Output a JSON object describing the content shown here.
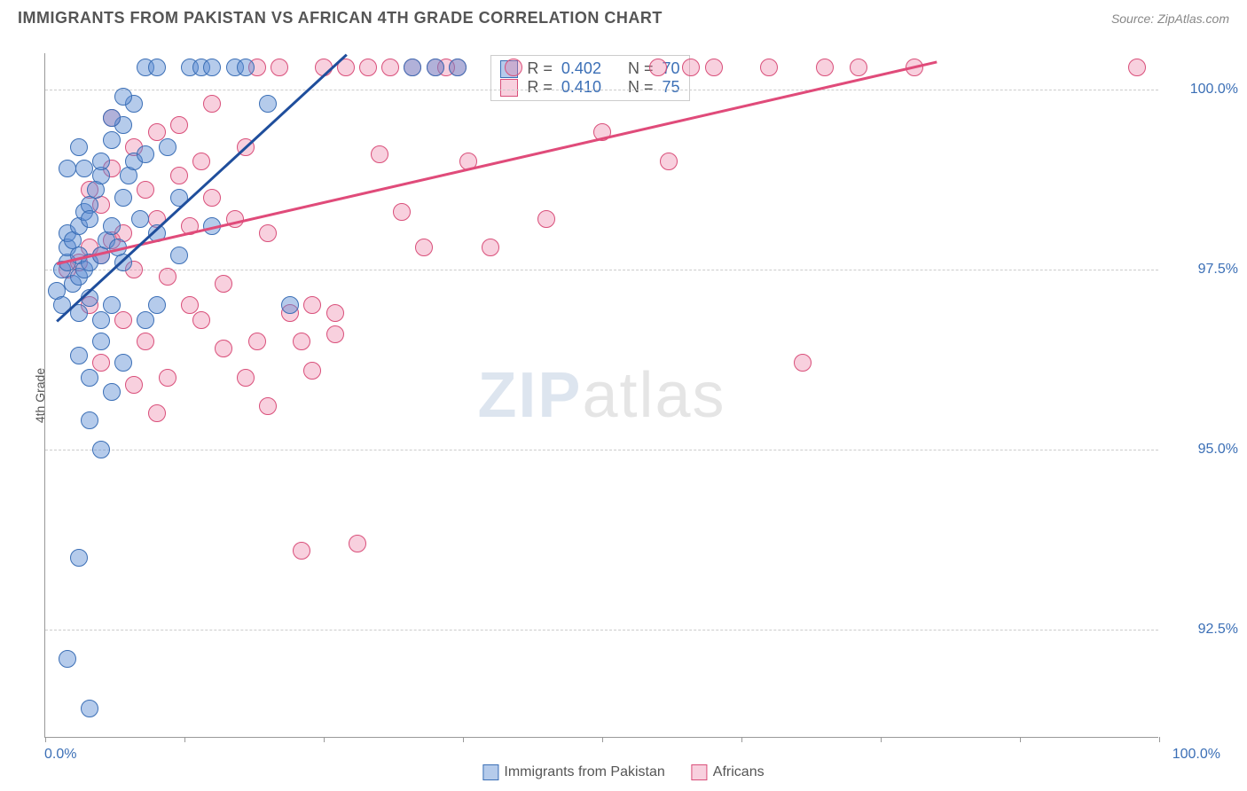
{
  "header": {
    "title": "IMMIGRANTS FROM PAKISTAN VS AFRICAN 4TH GRADE CORRELATION CHART",
    "source": "Source: ZipAtlas.com"
  },
  "axes": {
    "y_label": "4th Grade",
    "x_min": 0,
    "x_max": 100,
    "y_min": 91,
    "y_max": 100.5,
    "y_ticks": [
      92.5,
      95.0,
      97.5,
      100.0
    ],
    "y_tick_labels": [
      "92.5%",
      "95.0%",
      "97.5%",
      "100.0%"
    ],
    "x_ticks": [
      0,
      12.5,
      25,
      37.5,
      50,
      62.5,
      75,
      87.5,
      100
    ],
    "x_left_label": "0.0%",
    "x_right_label": "100.0%"
  },
  "colors": {
    "blue_fill": "rgba(90,140,210,0.45)",
    "blue_stroke": "#3b6fb6",
    "pink_fill": "rgba(235,120,160,0.35)",
    "pink_stroke": "#d94f7a",
    "grid": "#cccccc",
    "axis": "#999999",
    "text_blue": "#3b6fb6",
    "text_gray": "#555555",
    "line_blue": "#1f4e9c",
    "line_pink": "#e04b7a"
  },
  "marker_radius": 10,
  "legend_bottom": {
    "items": [
      {
        "label": "Immigrants from Pakistan",
        "swatch_fill": "rgba(90,140,210,0.45)",
        "swatch_stroke": "#3b6fb6"
      },
      {
        "label": "Africans",
        "swatch_fill": "rgba(235,120,160,0.35)",
        "swatch_stroke": "#d94f7a"
      }
    ]
  },
  "stats": {
    "rows": [
      {
        "swatch_fill": "rgba(90,140,210,0.45)",
        "swatch_stroke": "#3b6fb6",
        "r": "0.402",
        "n": "70"
      },
      {
        "swatch_fill": "rgba(235,120,160,0.35)",
        "swatch_stroke": "#d94f7a",
        "r": "0.410",
        "n": "75"
      }
    ]
  },
  "watermark": {
    "zip": "ZIP",
    "atlas": "atlas"
  },
  "trend_lines": {
    "blue": {
      "x1": 1,
      "y1": 96.8,
      "x2": 27,
      "y2": 100.5,
      "color": "#1f4e9c",
      "width": 2.5
    },
    "pink": {
      "x1": 1,
      "y1": 97.6,
      "x2": 80,
      "y2": 100.4,
      "color": "#e04b7a",
      "width": 2.5
    }
  },
  "series": {
    "pakistan": {
      "fill": "rgba(90,140,210,0.45)",
      "stroke": "#3b6fb6",
      "points": [
        [
          1,
          97.2
        ],
        [
          1.5,
          97.5
        ],
        [
          2,
          97.6
        ],
        [
          2,
          97.8
        ],
        [
          2,
          98.0
        ],
        [
          2.5,
          97.3
        ],
        [
          2.5,
          97.9
        ],
        [
          3,
          97.4
        ],
        [
          3,
          97.7
        ],
        [
          3,
          98.1
        ],
        [
          3.5,
          97.5
        ],
        [
          3.5,
          98.3
        ],
        [
          4,
          97.6
        ],
        [
          4,
          98.4
        ],
        [
          4,
          97.1
        ],
        [
          4.5,
          98.6
        ],
        [
          5,
          97.7
        ],
        [
          5,
          98.8
        ],
        [
          5,
          99.0
        ],
        [
          5.5,
          97.9
        ],
        [
          6,
          98.1
        ],
        [
          6,
          99.3
        ],
        [
          6.5,
          97.8
        ],
        [
          7,
          98.5
        ],
        [
          7,
          99.5
        ],
        [
          7,
          97.6
        ],
        [
          7.5,
          98.8
        ],
        [
          8,
          99.0
        ],
        [
          8,
          99.8
        ],
        [
          8.5,
          98.2
        ],
        [
          9,
          100.3
        ],
        [
          9,
          99.1
        ],
        [
          10,
          100.3
        ],
        [
          10,
          98.0
        ],
        [
          11,
          99.2
        ],
        [
          12,
          98.5
        ],
        [
          12,
          97.7
        ],
        [
          13,
          100.3
        ],
        [
          14,
          100.3
        ],
        [
          15,
          100.3
        ],
        [
          15,
          98.1
        ],
        [
          17,
          100.3
        ],
        [
          18,
          100.3
        ],
        [
          20,
          99.8
        ],
        [
          22,
          97.0
        ],
        [
          3,
          96.3
        ],
        [
          4,
          96.0
        ],
        [
          5,
          96.5
        ],
        [
          6,
          95.8
        ],
        [
          7,
          96.2
        ],
        [
          5,
          96.8
        ],
        [
          6,
          97.0
        ],
        [
          3,
          96.9
        ],
        [
          4,
          95.4
        ],
        [
          5,
          95.0
        ],
        [
          2,
          92.1
        ],
        [
          4,
          91.4
        ],
        [
          6,
          99.6
        ],
        [
          9,
          96.8
        ],
        [
          10,
          97.0
        ],
        [
          2,
          98.9
        ],
        [
          3,
          99.2
        ],
        [
          1.5,
          97.0
        ],
        [
          33,
          100.3
        ],
        [
          35,
          100.3
        ],
        [
          37,
          100.3
        ],
        [
          3,
          93.5
        ],
        [
          3.5,
          98.9
        ],
        [
          4,
          98.2
        ],
        [
          7,
          99.9
        ]
      ]
    },
    "african": {
      "fill": "rgba(235,120,160,0.35)",
      "stroke": "#d94f7a",
      "points": [
        [
          2,
          97.5
        ],
        [
          3,
          97.6
        ],
        [
          4,
          97.8
        ],
        [
          5,
          97.7
        ],
        [
          6,
          97.9
        ],
        [
          7,
          98.0
        ],
        [
          8,
          97.5
        ],
        [
          9,
          98.6
        ],
        [
          10,
          98.2
        ],
        [
          10,
          99.4
        ],
        [
          11,
          97.4
        ],
        [
          12,
          98.8
        ],
        [
          13,
          98.1
        ],
        [
          14,
          99.0
        ],
        [
          15,
          98.5
        ],
        [
          15,
          99.8
        ],
        [
          16,
          97.3
        ],
        [
          17,
          98.2
        ],
        [
          18,
          99.2
        ],
        [
          19,
          100.3
        ],
        [
          20,
          98.0
        ],
        [
          21,
          100.3
        ],
        [
          22,
          96.9
        ],
        [
          23,
          93.6
        ],
        [
          24,
          97.0
        ],
        [
          25,
          100.3
        ],
        [
          26,
          96.6
        ],
        [
          27,
          100.3
        ],
        [
          28,
          93.7
        ],
        [
          29,
          100.3
        ],
        [
          30,
          99.1
        ],
        [
          31,
          100.3
        ],
        [
          32,
          98.3
        ],
        [
          33,
          100.3
        ],
        [
          34,
          97.8
        ],
        [
          35,
          100.3
        ],
        [
          37,
          100.3
        ],
        [
          38,
          99.0
        ],
        [
          40,
          97.8
        ],
        [
          42,
          100.3
        ],
        [
          45,
          98.2
        ],
        [
          50,
          99.4
        ],
        [
          55,
          100.3
        ],
        [
          56,
          99.0
        ],
        [
          58,
          100.3
        ],
        [
          60,
          100.3
        ],
        [
          65,
          100.3
        ],
        [
          68,
          96.2
        ],
        [
          70,
          100.3
        ],
        [
          73,
          100.3
        ],
        [
          78,
          100.3
        ],
        [
          98,
          100.3
        ],
        [
          8,
          95.9
        ],
        [
          10,
          95.5
        ],
        [
          11,
          96.0
        ],
        [
          18,
          96.0
        ],
        [
          20,
          95.6
        ],
        [
          7,
          96.8
        ],
        [
          9,
          96.5
        ],
        [
          4,
          97.0
        ],
        [
          5,
          98.4
        ],
        [
          6,
          98.9
        ],
        [
          8,
          99.2
        ],
        [
          12,
          99.5
        ],
        [
          5,
          96.2
        ],
        [
          14,
          96.8
        ],
        [
          16,
          96.4
        ],
        [
          26,
          96.9
        ],
        [
          4,
          98.6
        ],
        [
          6,
          99.6
        ],
        [
          13,
          97.0
        ],
        [
          19,
          96.5
        ],
        [
          24,
          96.1
        ],
        [
          23,
          96.5
        ],
        [
          36,
          100.3
        ]
      ]
    }
  }
}
